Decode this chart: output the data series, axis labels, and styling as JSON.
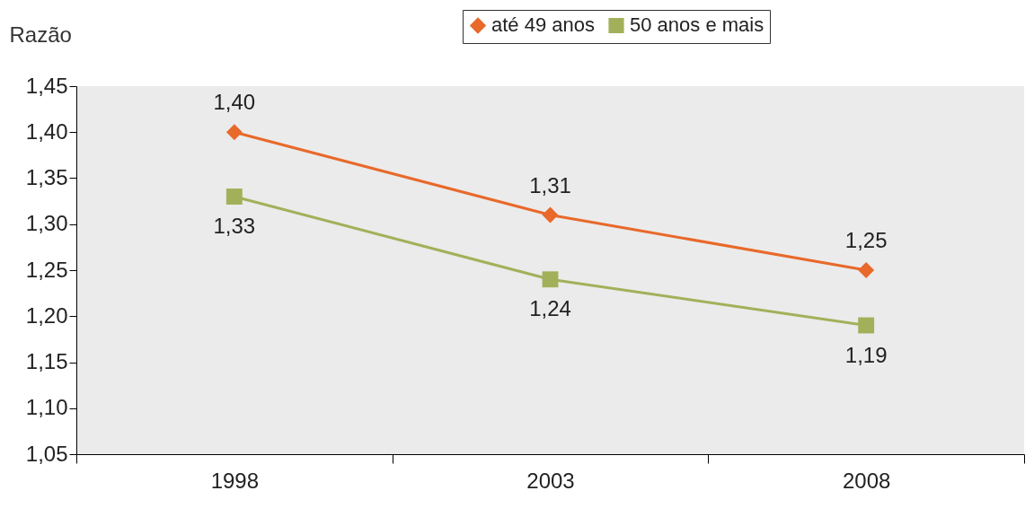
{
  "chart_data": {
    "type": "line",
    "ylabel": "Razão",
    "categories": [
      "1998",
      "2003",
      "2008"
    ],
    "series": [
      {
        "name": "até 49 anos",
        "color": "#e8692a",
        "marker": "diamond",
        "values": [
          1.4,
          1.31,
          1.25
        ],
        "value_labels": [
          "1,40",
          "1,31",
          "1,25"
        ]
      },
      {
        "name": "50 anos e mais",
        "color": "#a3b05a",
        "marker": "square",
        "values": [
          1.33,
          1.24,
          1.19
        ],
        "value_labels": [
          "1,33",
          "1,24",
          "1,19"
        ]
      }
    ],
    "ylim": [
      1.05,
      1.45
    ],
    "yticks": [
      {
        "value": 1.05,
        "label": "1,05"
      },
      {
        "value": 1.1,
        "label": "1,10"
      },
      {
        "value": 1.15,
        "label": "1,15"
      },
      {
        "value": 1.2,
        "label": "1,20"
      },
      {
        "value": 1.25,
        "label": "1,25"
      },
      {
        "value": 1.3,
        "label": "1,30"
      },
      {
        "value": 1.35,
        "label": "1,35"
      },
      {
        "value": 1.4,
        "label": "1,40"
      },
      {
        "value": 1.45,
        "label": "1,45"
      }
    ],
    "legend": "top",
    "grid": false
  }
}
